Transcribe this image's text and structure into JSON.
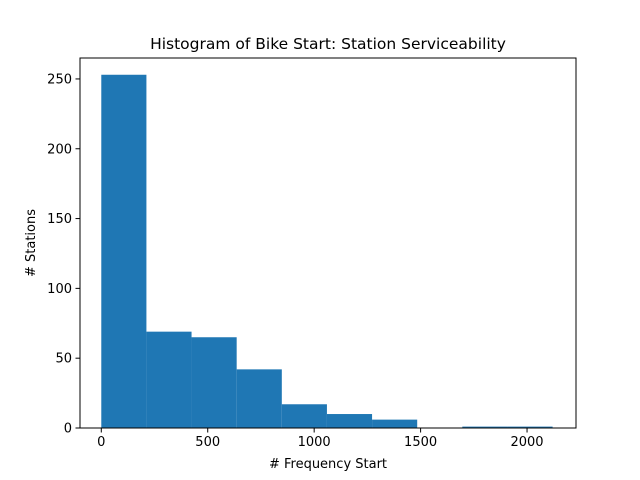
{
  "chart_data": {
    "type": "bar",
    "title": "Histogram of Bike Start: Station Serviceability",
    "xlabel": "# Frequency Start",
    "ylabel": "# Stations",
    "bin_edges": [
      0,
      212,
      424,
      636,
      848,
      1060,
      1272,
      1484,
      1696,
      1908,
      2120
    ],
    "counts": [
      253,
      69,
      65,
      42,
      17,
      10,
      6,
      0,
      1,
      1
    ],
    "xlim": [
      -100,
      2230
    ],
    "ylim": [
      0,
      265
    ],
    "xticks": [
      0,
      500,
      1000,
      1500,
      2000
    ],
    "xtick_labels": [
      "0",
      "500",
      "1000",
      "1500",
      "2000"
    ],
    "yticks": [
      0,
      50,
      100,
      150,
      200,
      250
    ],
    "ytick_labels": [
      "0",
      "50",
      "100",
      "150",
      "200",
      "250"
    ],
    "grid": false,
    "legend": "none",
    "bar_color": "#1f77b4"
  }
}
